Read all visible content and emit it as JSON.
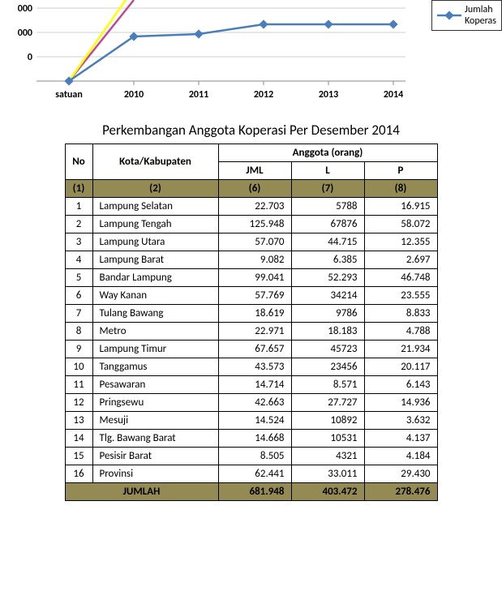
{
  "chart": {
    "type": "line",
    "y_labels": [
      "000",
      "000",
      "0"
    ],
    "x_labels": [
      "satuan",
      "2010",
      "2011",
      "2012",
      "2013",
      "2014"
    ],
    "axis_color": "#888888",
    "grid_color": "#d0cfcf",
    "label_color": "#000000",
    "label_fontsize": 12,
    "series": [
      {
        "name": "blue",
        "color": "#4a7ebb",
        "marker": "diamond",
        "points": [
          [
            0,
            0
          ],
          [
            1,
            55
          ],
          [
            2,
            58
          ],
          [
            3,
            70
          ],
          [
            4,
            70
          ],
          [
            5,
            70
          ]
        ]
      },
      {
        "name": "magenta",
        "color": "#be4b97",
        "marker": "none",
        "points": [
          [
            0,
            0
          ],
          [
            1,
            100
          ]
        ]
      },
      {
        "name": "yellow",
        "color": "#ffff00",
        "marker": "none",
        "points": [
          [
            0,
            0
          ],
          [
            1,
            100
          ]
        ]
      }
    ],
    "legend": {
      "text_line1": "Jumlah",
      "text_line2": "Koperas",
      "marker_color": "#4a7ebb"
    }
  },
  "table": {
    "title": "Perkembangan Anggota Koperasi Per Desember 2014",
    "header_top": {
      "no": "No",
      "kk": "Kota/Kabupaten",
      "anggota": "Anggota (orang)"
    },
    "header_sub": {
      "jml": "JML",
      "l": "L",
      "p": "P"
    },
    "col_nums": {
      "no": "(1)",
      "kk": "(2)",
      "jml": "(6)",
      "l": "(7)",
      "p": "(8)"
    },
    "rows": [
      {
        "no": "1",
        "kk": "Lampung Selatan",
        "jml": "22.703",
        "l": "5788",
        "p": "16.915"
      },
      {
        "no": "2",
        "kk": "Lampung Tengah",
        "jml": "125.948",
        "l": "67876",
        "p": "58.072"
      },
      {
        "no": "3",
        "kk": "Lampung Utara",
        "jml": "57.070",
        "l": "44.715",
        "p": "12.355"
      },
      {
        "no": "4",
        "kk": "Lampung Barat",
        "jml": "9.082",
        "l": "6.385",
        "p": "2.697"
      },
      {
        "no": "5",
        "kk": "Bandar Lampung",
        "jml": "99.041",
        "l": "52.293",
        "p": "46.748"
      },
      {
        "no": "6",
        "kk": "Way Kanan",
        "jml": "57.769",
        "l": "34214",
        "p": "23.555"
      },
      {
        "no": "7",
        "kk": "Tulang Bawang",
        "jml": "18.619",
        "l": "9786",
        "p": "8.833"
      },
      {
        "no": "8",
        "kk": "Metro",
        "jml": "22.971",
        "l": "18.183",
        "p": "4.788"
      },
      {
        "no": "9",
        "kk": "Lampung Timur",
        "jml": "67.657",
        "l": "45723",
        "p": "21.934"
      },
      {
        "no": "10",
        "kk": "Tanggamus",
        "jml": "43.573",
        "l": "23456",
        "p": "20.117"
      },
      {
        "no": "11",
        "kk": "Pesawaran",
        "jml": "14.714",
        "l": "8.571",
        "p": "6.143"
      },
      {
        "no": "12",
        "kk": "Pringsewu",
        "jml": "42.663",
        "l": "27.727",
        "p": "14.936"
      },
      {
        "no": "13",
        "kk": "Mesuji",
        "jml": "14.524",
        "l": "10892",
        "p": "3.632"
      },
      {
        "no": "14",
        "kk": "Tlg. Bawang Barat",
        "jml": "14.668",
        "l": "10531",
        "p": "4.137"
      },
      {
        "no": "15",
        "kk": "Pesisir Barat",
        "jml": "8.505",
        "l": "4321",
        "p": "4.184"
      },
      {
        "no": "16",
        "kk": "Provinsi",
        "jml": "62.441",
        "l": "33.011",
        "p": "29.430"
      }
    ],
    "total": {
      "label": "JUMLAH",
      "jml": "681.948",
      "l": "403.472",
      "p": "278.476"
    },
    "header_bg": "#ffffff",
    "numrow_bg": "#948a54",
    "total_bg": "#948a54"
  }
}
